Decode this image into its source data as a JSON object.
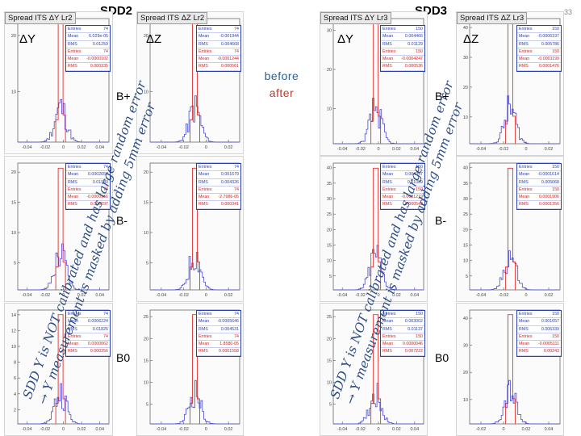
{
  "slide": {
    "number": "33",
    "sections": {
      "sdd2": {
        "title": "SDD2"
      },
      "sdd3": {
        "title": "SDD3"
      }
    },
    "labels": {
      "dy": "ΔY",
      "dz": "ΔZ",
      "before": "before",
      "after": "after",
      "b_plus": "B+",
      "b_minus": "B-",
      "b_zero": "B0"
    },
    "note": {
      "line1": "SDD Y is NOT calibrated and has large random error",
      "line2": "→ Y measurement is masked by adding 5mm error"
    },
    "colors": {
      "before": "#2f5f9a",
      "after": "#c0392b",
      "hist_before": "#4a4ad8",
      "hist_after": "#e23030",
      "stat_blue": "#2b3fb0",
      "stat_red": "#d42424"
    }
  },
  "panels": {
    "sdd2_y_bp": {
      "title": "Spread ITS ΔY Lr2",
      "xticks": [
        "-0.04",
        "-0.02",
        "0",
        "0.02",
        "0.04"
      ],
      "yticks": [
        "20",
        "10"
      ],
      "stats_before": [
        [
          "Entries",
          "74"
        ],
        [
          "Mean",
          "6.029e-05"
        ],
        [
          "RMS",
          "0.01259"
        ]
      ],
      "stats_after": [
        [
          "Entries",
          "74"
        ],
        [
          "Mean",
          "-0.0000102"
        ],
        [
          "RMS",
          "0.000335"
        ]
      ]
    },
    "sdd2_z_bp": {
      "title": "Spread ITS ΔZ Lr2",
      "xticks": [
        "-0.04",
        "-0.02",
        "0",
        "0.02"
      ],
      "yticks": [
        "20",
        "10"
      ],
      "stats_before": [
        [
          "Entries",
          "74"
        ],
        [
          "Mean",
          "-0.001944"
        ],
        [
          "RMS",
          "0.004668"
        ]
      ],
      "stats_after": [
        [
          "Entries",
          "74"
        ],
        [
          "Mean",
          "-0.0001244"
        ],
        [
          "RMS",
          "0.000561"
        ]
      ]
    },
    "sdd2_y_bm": {
      "title": "",
      "xticks": [
        "-0.04",
        "-0.02",
        "0",
        "0.02",
        "0.04"
      ],
      "yticks": [
        "20",
        "15",
        "10",
        "5"
      ],
      "stats_before": [
        [
          "Entries",
          "74"
        ],
        [
          "Mean",
          "0.0002657"
        ],
        [
          "RMS",
          "0.01930"
        ]
      ],
      "stats_after": [
        [
          "Entries",
          "74"
        ],
        [
          "Mean",
          "-0.0000166"
        ],
        [
          "RMS",
          "0.000297"
        ]
      ]
    },
    "sdd2_z_bm": {
      "title": "",
      "xticks": [
        "-0.04",
        "-0.02",
        "0",
        "0.02"
      ],
      "yticks": [
        "20",
        "15",
        "10",
        "5"
      ],
      "stats_before": [
        [
          "Entries",
          "74"
        ],
        [
          "Mean",
          "0.001679"
        ],
        [
          "RMS",
          "0.004326"
        ]
      ],
      "stats_after": [
        [
          "Entries",
          "74"
        ],
        [
          "Mean",
          "-2.7986-05"
        ],
        [
          "RMS",
          "0.000341"
        ]
      ]
    },
    "sdd2_y_b0": {
      "title": "",
      "xticks": [
        "-0.04",
        "-0.02",
        "0",
        "0.02",
        "0.04"
      ],
      "yticks": [
        "14",
        "12",
        "10",
        "8",
        "6",
        "4",
        "2"
      ],
      "stats_before": [
        [
          "Entries",
          "74"
        ],
        [
          "Mean",
          "0.0006224"
        ],
        [
          "RMS",
          "0.01826"
        ]
      ],
      "stats_after": [
        [
          "Entries",
          "74"
        ],
        [
          "Mean",
          "0.0000062"
        ],
        [
          "RMS",
          "0.000356"
        ]
      ]
    },
    "sdd2_z_b0": {
      "title": "",
      "xticks": [
        "-0.04",
        "-0.02",
        "0",
        "0.02"
      ],
      "yticks": [
        "25",
        "20",
        "15",
        "10",
        "5"
      ],
      "stats_before": [
        [
          "Entries",
          "74"
        ],
        [
          "Mean",
          "-0.0005646"
        ],
        [
          "RMS",
          "0.004531"
        ]
      ],
      "stats_after": [
        [
          "Entries",
          "74"
        ],
        [
          "Mean",
          "1.8580-05"
        ],
        [
          "RMS",
          "0.0001558"
        ]
      ]
    },
    "sdd3_y_bp": {
      "title": "Spread ITS ΔY Lr3",
      "xticks": [
        "-0.04",
        "-0.02",
        "0",
        "0.02",
        "0.04"
      ],
      "yticks": [
        "30",
        "20",
        "10"
      ],
      "stats_before": [
        [
          "Entries",
          "150"
        ],
        [
          "Mean",
          "0.004466"
        ],
        [
          "RMS",
          "0.01129"
        ]
      ],
      "stats_after": [
        [
          "Entries",
          "150"
        ],
        [
          "Mean",
          "-0.0004247"
        ],
        [
          "RMS",
          "0.000536"
        ]
      ]
    },
    "sdd3_z_bp": {
      "title": "Spread ITS ΔZ Lr3",
      "xticks": [
        "-0.04",
        "-0.02",
        "0",
        "0.02"
      ],
      "yticks": [
        "40",
        "30",
        "20",
        "10"
      ],
      "stats_before": [
        [
          "Entries",
          "150"
        ],
        [
          "Mean",
          "-0.0006197"
        ],
        [
          "RMS",
          "0.005786"
        ]
      ],
      "stats_after": [
        [
          "Entries",
          "150"
        ],
        [
          "Mean",
          "-0.0001199"
        ],
        [
          "RMS",
          "0.0001476"
        ]
      ]
    },
    "sdd3_y_bm": {
      "title": "",
      "xticks": [
        "-0.04",
        "-0.02",
        "0",
        "0.02",
        "0.04"
      ],
      "yticks": [
        "40",
        "35",
        "30",
        "25",
        "20",
        "15",
        "10",
        "5"
      ],
      "stats_before": [
        [
          "Entries",
          "150"
        ],
        [
          "Mean",
          "0.004047"
        ],
        [
          "RMS",
          "0.01089"
        ]
      ],
      "stats_after": [
        [
          "Entries",
          "150"
        ],
        [
          "Mean",
          "-0.0001219"
        ],
        [
          "RMS",
          "0.000549"
        ]
      ]
    },
    "sdd3_z_bm": {
      "title": "",
      "xticks": [
        "-0.04",
        "-0.02",
        "0",
        "0.02"
      ],
      "yticks": [
        "40",
        "35",
        "30",
        "25",
        "20",
        "15",
        "10",
        "5"
      ],
      "stats_before": [
        [
          "Entries",
          "150"
        ],
        [
          "Mean",
          "-0.0001614"
        ],
        [
          "RMS",
          "0.005068"
        ]
      ],
      "stats_after": [
        [
          "Entries",
          "150"
        ],
        [
          "Mean",
          "0.0001906"
        ],
        [
          "RMS",
          "0.0001356"
        ]
      ]
    },
    "sdd3_y_b0": {
      "title": "",
      "xticks": [
        "-0.04",
        "-0.02",
        "0",
        "0.02",
        "0.04"
      ],
      "yticks": [
        "25",
        "20",
        "15",
        "10",
        "5"
      ],
      "stats_before": [
        [
          "Entries",
          "150"
        ],
        [
          "Mean",
          "0.003002"
        ],
        [
          "RMS",
          "0.01137"
        ]
      ],
      "stats_after": [
        [
          "Entries",
          "150"
        ],
        [
          "Mean",
          "0.0000046"
        ],
        [
          "RMS",
          "0.007222"
        ]
      ]
    },
    "sdd3_z_b0": {
      "title": "",
      "xticks": [
        "-0.02",
        "0",
        "0.02",
        "0.04"
      ],
      "yticks": [
        "40",
        "30",
        "20",
        "10"
      ],
      "stats_before": [
        [
          "Entries",
          "150"
        ],
        [
          "Mean",
          "0.001657"
        ],
        [
          "RMS",
          "0.006339"
        ]
      ],
      "stats_after": [
        [
          "Entries",
          "150"
        ],
        [
          "Mean",
          "-0.0005111"
        ],
        [
          "RMS",
          "0.00243"
        ]
      ]
    }
  }
}
